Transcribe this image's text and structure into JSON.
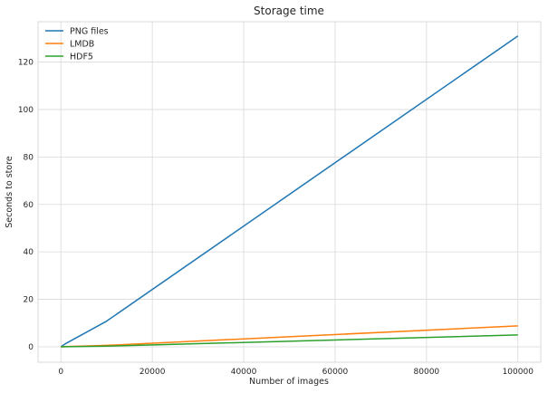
{
  "chart_data": {
    "type": "line",
    "title": "Storage time",
    "xlabel": "Number of images",
    "ylabel": "Seconds to store",
    "xlim": [
      -5000,
      105000
    ],
    "ylim": [
      -6.5,
      137
    ],
    "x_ticks": [
      0,
      20000,
      40000,
      60000,
      80000,
      100000
    ],
    "y_ticks": [
      0,
      20,
      40,
      60,
      80,
      100,
      120
    ],
    "grid": true,
    "legend_position": "top-left",
    "x": [
      10,
      100,
      1000,
      10000,
      100000
    ],
    "series": [
      {
        "name": "PNG files",
        "color": "#1f77b4",
        "values": [
          0.013,
          0.13,
          1.3,
          10.8,
          131
        ]
      },
      {
        "name": "LMDB",
        "color": "#ff7f0e",
        "values": [
          0.001,
          0.009,
          0.09,
          0.6,
          8.8
        ]
      },
      {
        "name": "HDF5",
        "color": "#2ca02c",
        "values": [
          0.0005,
          0.005,
          0.05,
          0.25,
          5.0
        ]
      }
    ]
  }
}
